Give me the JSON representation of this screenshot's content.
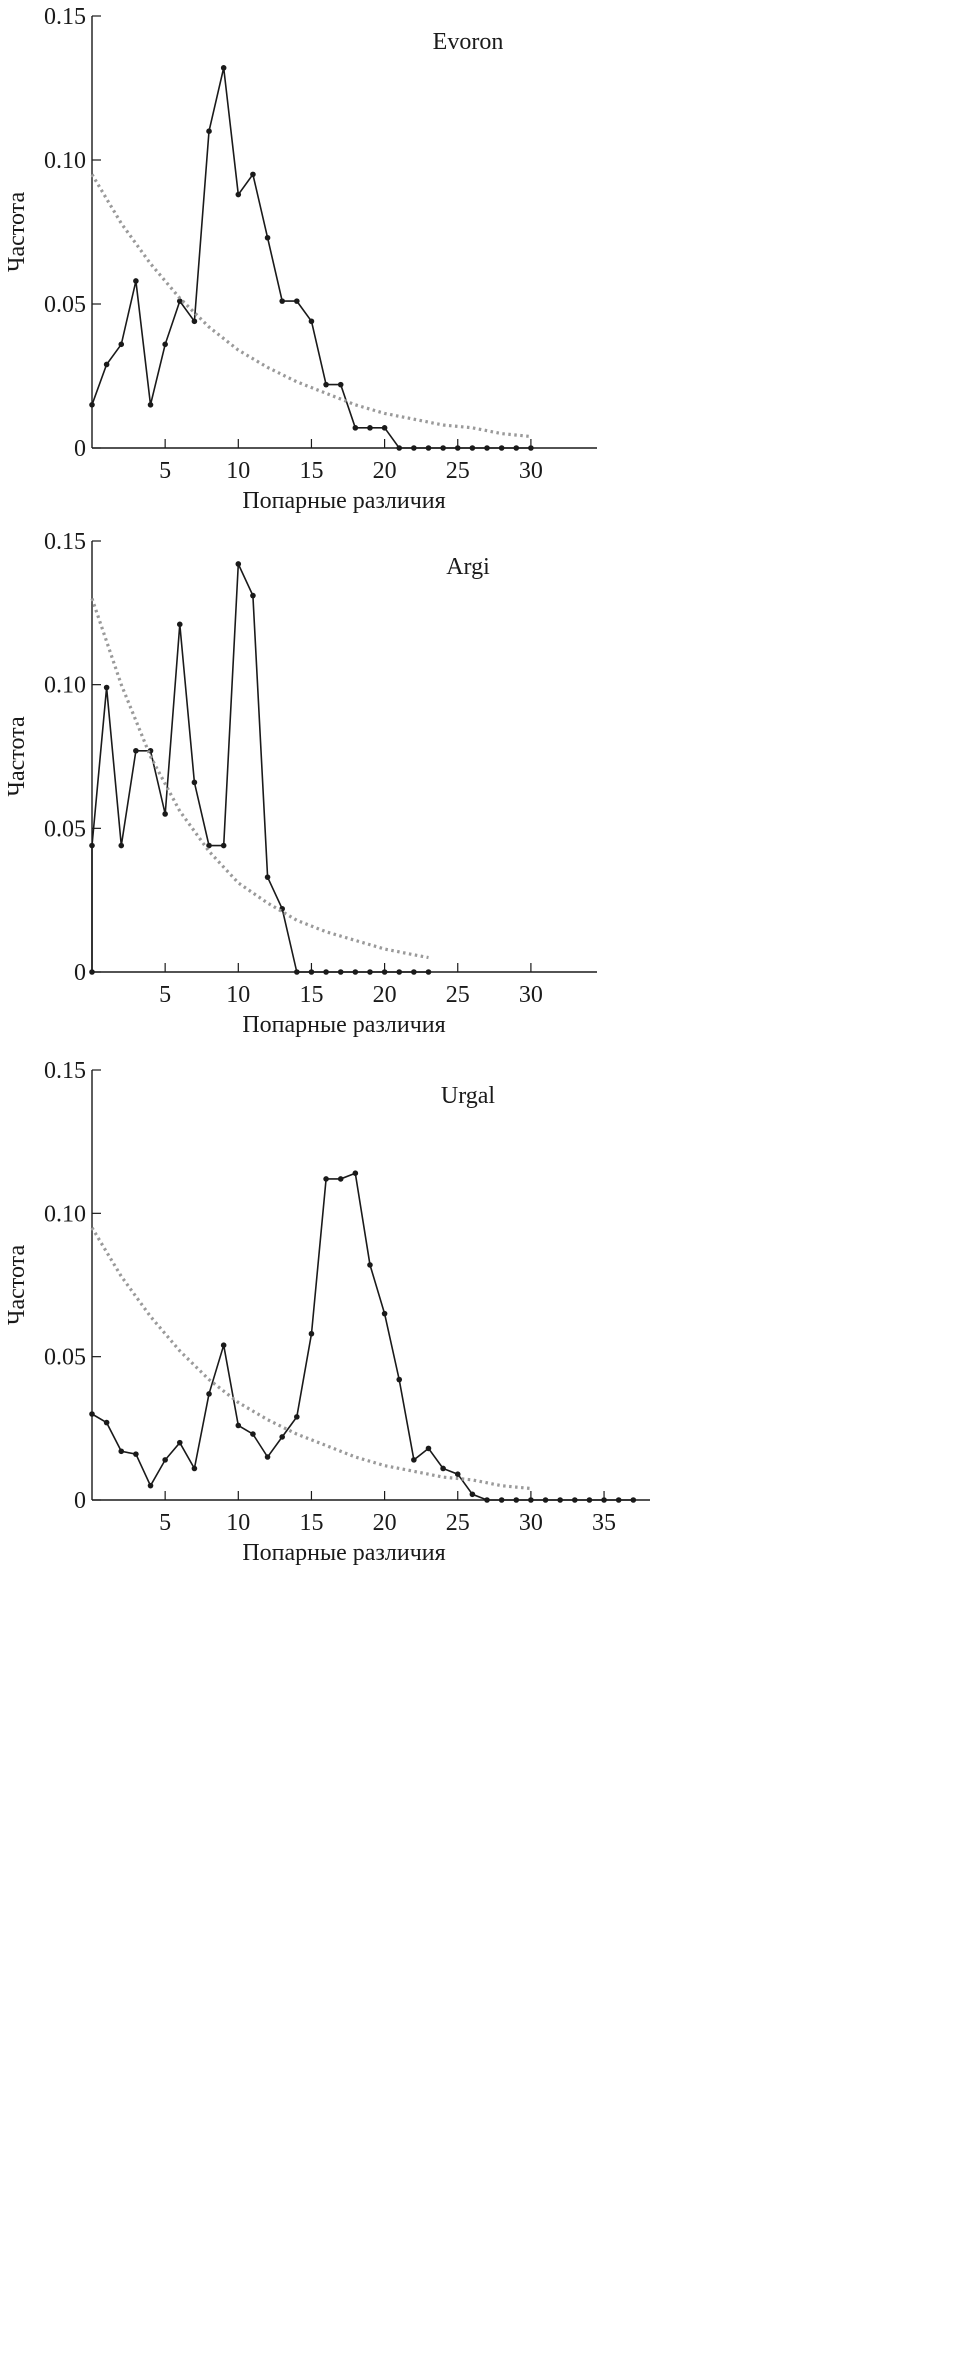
{
  "chart_data": [
    {
      "type": "line",
      "title": "Evoron",
      "xlabel": "Попарные различия",
      "ylabel": "Частота",
      "xlim": [
        0,
        34
      ],
      "ylim": [
        0,
        0.15
      ],
      "xticks": [
        5,
        10,
        15,
        20,
        25,
        30
      ],
      "yticks": [
        0,
        0.05,
        0.1,
        0.15
      ],
      "ytick_labels": [
        "0",
        "0.05",
        "0.10",
        "0.15"
      ],
      "series": [
        {
          "style": "solid-with-markers",
          "x": [
            0,
            1,
            2,
            3,
            4,
            5,
            6,
            7,
            8,
            9,
            10,
            11,
            12,
            13,
            14,
            15,
            16,
            17,
            18,
            19,
            20,
            21,
            22,
            23,
            24,
            25,
            26,
            27,
            28,
            29,
            30
          ],
          "y": [
            0.015,
            0.029,
            0.036,
            0.058,
            0.015,
            0.036,
            0.051,
            0.044,
            0.11,
            0.132,
            0.088,
            0.095,
            0.073,
            0.051,
            0.051,
            0.044,
            0.022,
            0.022,
            0.007,
            0.007,
            0.007,
            0,
            0,
            0,
            0,
            0,
            0,
            0,
            0,
            0,
            0
          ]
        },
        {
          "style": "dotted-gray",
          "x": [
            0,
            2,
            4,
            6,
            8,
            10,
            12,
            14,
            16,
            18,
            20,
            22,
            24,
            26,
            28,
            30
          ],
          "y": [
            0.095,
            0.078,
            0.064,
            0.052,
            0.042,
            0.034,
            0.028,
            0.023,
            0.019,
            0.015,
            0.012,
            0.01,
            0.008,
            0.007,
            0.005,
            0.004
          ]
        }
      ]
    },
    {
      "type": "line",
      "title": "Argi",
      "xlabel": "Попарные различия",
      "ylabel": "Частота",
      "xlim": [
        0,
        34
      ],
      "ylim": [
        0,
        0.15
      ],
      "xticks": [
        5,
        10,
        15,
        20,
        25,
        30
      ],
      "yticks": [
        0,
        0.05,
        0.1,
        0.15
      ],
      "ytick_labels": [
        "0",
        "0.05",
        "0.10",
        "0.15"
      ],
      "series": [
        {
          "style": "solid-with-markers",
          "x": [
            0,
            0,
            1,
            2,
            3,
            4,
            5,
            6,
            7,
            8,
            9,
            10,
            11,
            12,
            13,
            14,
            15,
            16,
            17,
            18,
            19,
            20,
            21,
            22,
            23
          ],
          "y": [
            0,
            0.044,
            0.099,
            0.044,
            0.077,
            0.077,
            0.055,
            0.121,
            0.066,
            0.044,
            0.044,
            0.142,
            0.131,
            0.033,
            0.022,
            0,
            0,
            0,
            0,
            0,
            0,
            0,
            0,
            0,
            0
          ]
        },
        {
          "style": "dotted-gray",
          "x": [
            0,
            2,
            4,
            6,
            8,
            10,
            12,
            14,
            16,
            18,
            20,
            22,
            23
          ],
          "y": [
            0.13,
            0.1,
            0.075,
            0.056,
            0.042,
            0.031,
            0.024,
            0.018,
            0.014,
            0.011,
            0.008,
            0.006,
            0.005
          ]
        }
      ]
    },
    {
      "type": "line",
      "title": "Urgal",
      "xlabel": "Попарные различия",
      "ylabel": "Частота",
      "xlim": [
        0,
        38
      ],
      "ylim": [
        0,
        0.15
      ],
      "xticks": [
        5,
        10,
        15,
        20,
        25,
        30,
        35
      ],
      "yticks": [
        0,
        0.05,
        0.1,
        0.15
      ],
      "ytick_labels": [
        "0",
        "0.05",
        "0.10",
        "0.15"
      ],
      "series": [
        {
          "style": "solid-with-markers",
          "x": [
            0,
            1,
            2,
            3,
            4,
            5,
            6,
            7,
            8,
            9,
            10,
            11,
            12,
            13,
            14,
            15,
            16,
            17,
            18,
            19,
            20,
            21,
            22,
            23,
            24,
            25,
            26,
            27,
            28,
            29,
            30,
            31,
            32,
            33,
            34,
            35,
            36,
            37
          ],
          "y": [
            0.03,
            0.027,
            0.017,
            0.016,
            0.005,
            0.014,
            0.02,
            0.011,
            0.037,
            0.054,
            0.026,
            0.023,
            0.015,
            0.022,
            0.029,
            0.058,
            0.112,
            0.112,
            0.114,
            0.082,
            0.065,
            0.042,
            0.014,
            0.018,
            0.011,
            0.009,
            0.002,
            0,
            0,
            0,
            0,
            0,
            0,
            0,
            0,
            0,
            0,
            0
          ]
        },
        {
          "style": "dotted-gray",
          "x": [
            0,
            2,
            4,
            6,
            8,
            10,
            12,
            14,
            16,
            18,
            20,
            22,
            24,
            26,
            28,
            30
          ],
          "y": [
            0.095,
            0.078,
            0.064,
            0.052,
            0.042,
            0.034,
            0.028,
            0.023,
            0.019,
            0.015,
            0.012,
            0.01,
            0.008,
            0.007,
            0.005,
            0.004
          ]
        }
      ]
    }
  ]
}
